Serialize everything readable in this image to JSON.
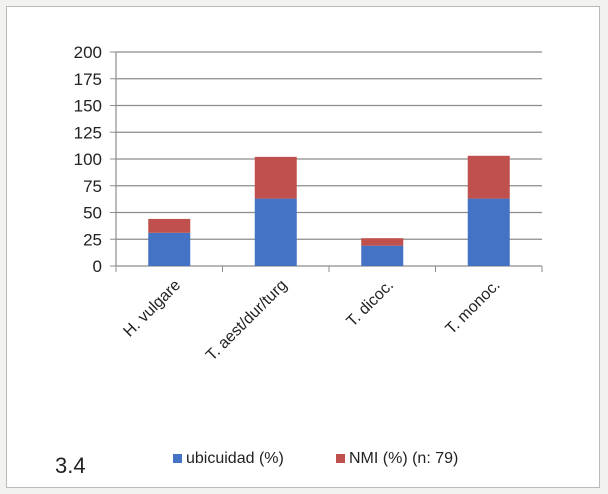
{
  "figure_label": "3.4",
  "chart_data": {
    "type": "bar",
    "stacked": true,
    "title": "",
    "xlabel": "",
    "ylabel": "",
    "categories": [
      "H. vulgare",
      "T. aest/dur/turg",
      "T. dicoc.",
      "T. monoc."
    ],
    "series": [
      {
        "name": "ubicuidad (%)",
        "color": "#4472c4",
        "values": [
          31,
          63,
          19,
          63
        ]
      },
      {
        "name": "NMI (%) (n: 79)",
        "color": "#c0504d",
        "values": [
          13,
          39,
          7,
          40
        ]
      }
    ],
    "ylim": [
      0,
      200
    ],
    "yticks": [
      0,
      25,
      50,
      75,
      100,
      125,
      150,
      175,
      200
    ],
    "grid": true,
    "legend": "bottom"
  }
}
